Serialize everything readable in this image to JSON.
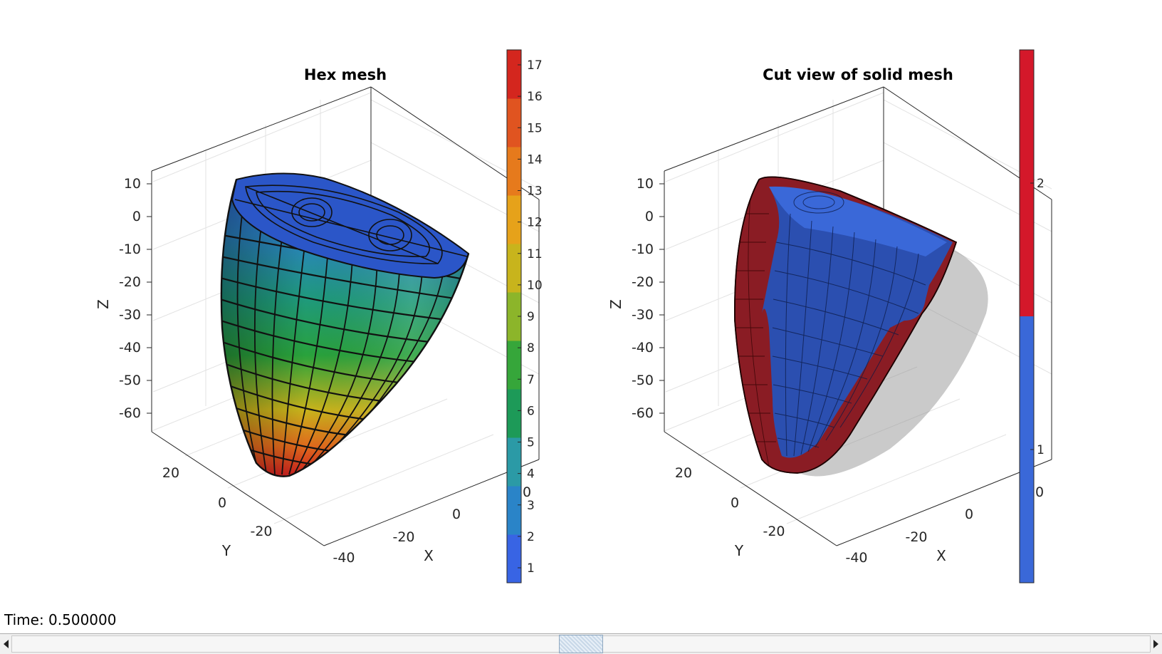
{
  "figure": {
    "panels": [
      {
        "title": "Hex mesh",
        "zlabel": "Z",
        "ylabel": "Y",
        "xlabel": "X",
        "zticks": [
          "10",
          "0",
          "-10",
          "-20",
          "-30",
          "-40",
          "-50",
          "-60"
        ],
        "yticks": [
          "20",
          "0",
          "-20"
        ],
        "xticks": [
          "-40",
          "-20",
          "0"
        ],
        "colorbar_ticks": [
          "17",
          "16",
          "15",
          "14",
          "13",
          "12",
          "11",
          "10",
          "9",
          "8",
          "7",
          "6",
          "5",
          "4",
          "3",
          "2",
          "1"
        ],
        "colormap": [
          "#3864e4",
          "#2a84c8",
          "#2b9aa6",
          "#1d9a58",
          "#36a63a",
          "#8cb52a",
          "#c8b41c",
          "#e6a21a",
          "#e67a1c",
          "#e05420",
          "#d4261e"
        ]
      },
      {
        "title": "Cut view of solid mesh",
        "zlabel": "Z",
        "ylabel": "Y",
        "xlabel": "X",
        "zticks": [
          "10",
          "0",
          "-10",
          "-20",
          "-30",
          "-40",
          "-50",
          "-60"
        ],
        "yticks": [
          "20",
          "0",
          "-20"
        ],
        "xticks": [
          "-40",
          "-20",
          "0"
        ],
        "colorbar_ticks": [
          "2",
          "1"
        ],
        "colormap": [
          "#d4182a",
          "#3a68d8"
        ]
      }
    ],
    "stray_tick": "0"
  },
  "time_label": "Time: 0.500000",
  "slider": {
    "value_fraction": 0.5
  },
  "colors": {
    "axes_line": "#262626",
    "grid": "#e6e6e6"
  }
}
